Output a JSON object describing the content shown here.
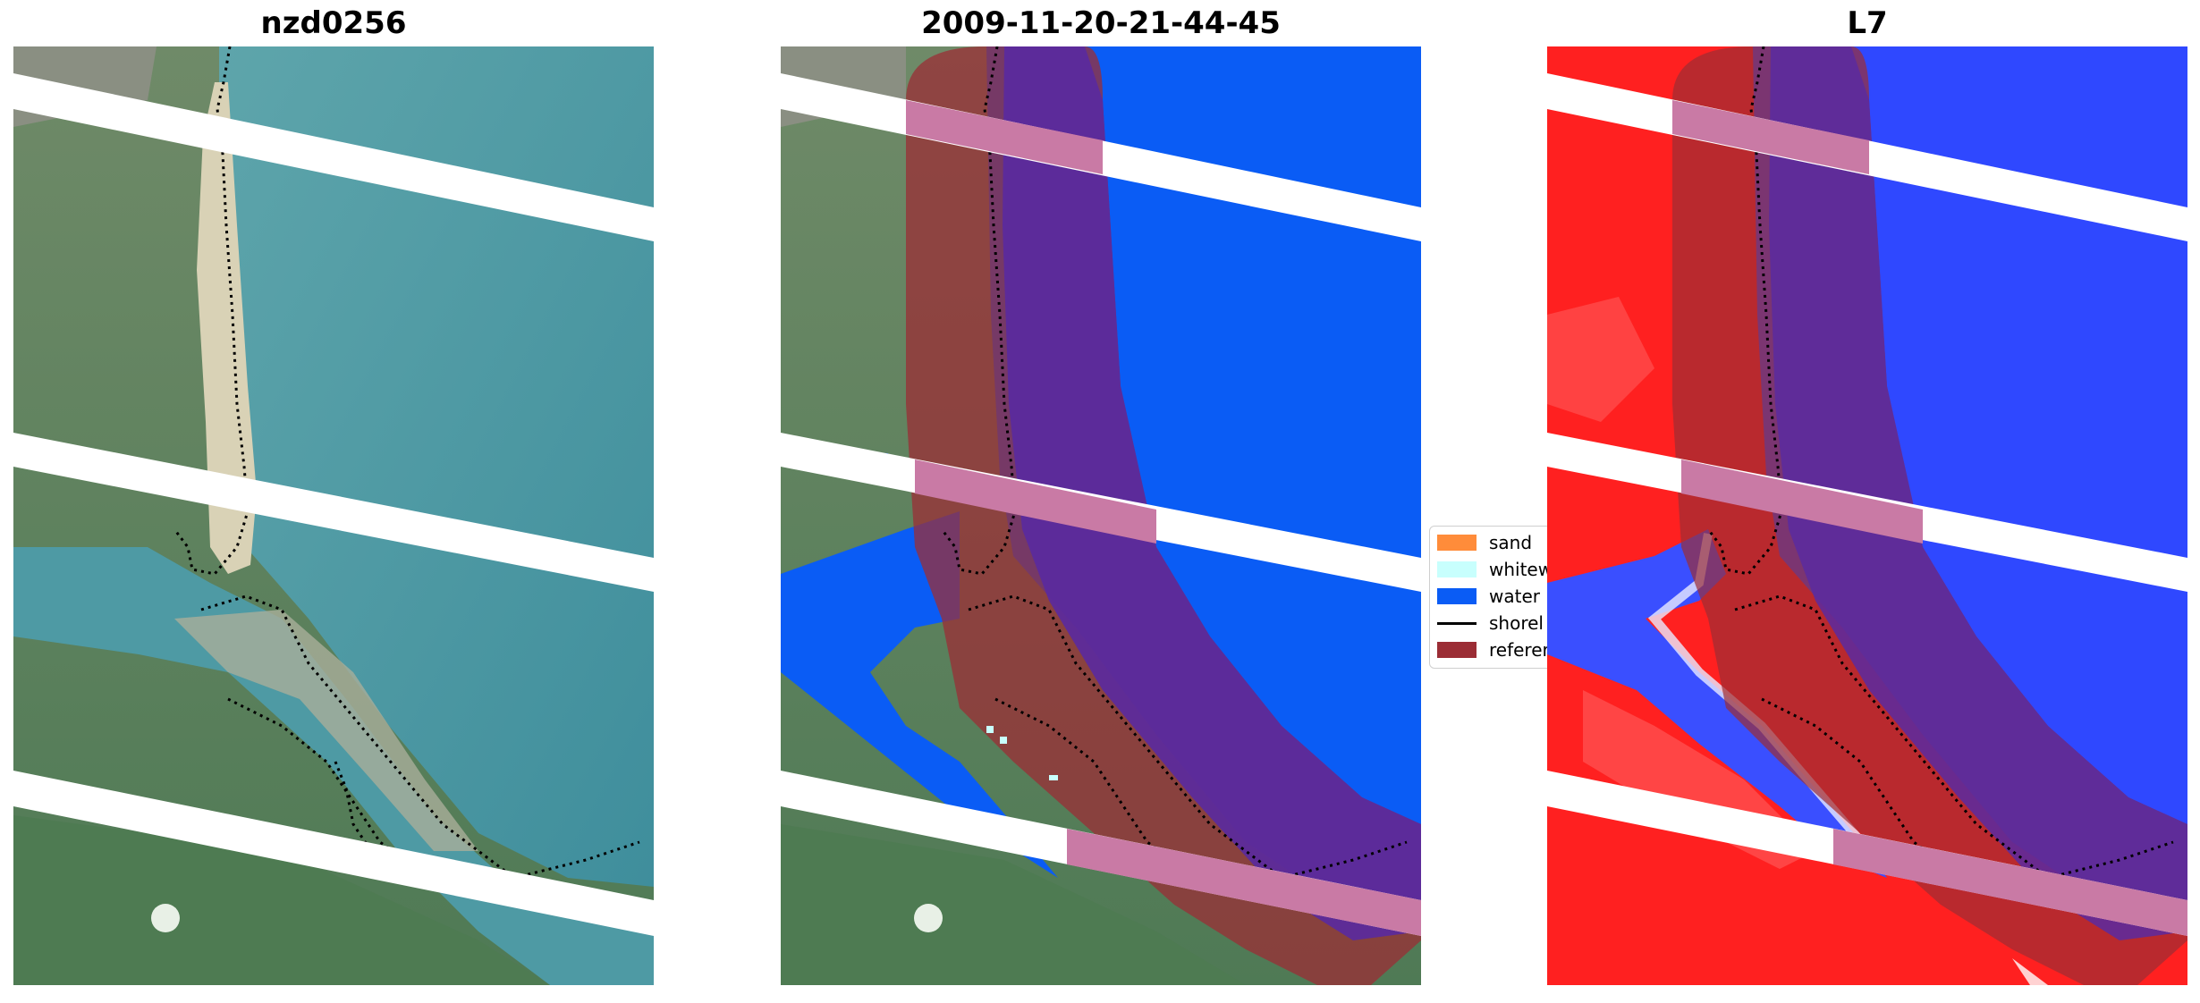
{
  "panels": [
    {
      "title": "nzd0256"
    },
    {
      "title": "2009-11-20-21-44-45"
    },
    {
      "title": "L7"
    }
  ],
  "legend": {
    "items": [
      {
        "label": "sand",
        "color": "#ff8c3a",
        "kind": "patch"
      },
      {
        "label": "whitew",
        "color": "#c8fffd",
        "kind": "patch"
      },
      {
        "label": "water",
        "color": "#0a5cf5",
        "kind": "patch"
      },
      {
        "label": "shorel",
        "color": "#000000",
        "kind": "line"
      },
      {
        "label": "referer",
        "color": "#9b2d35",
        "kind": "patch"
      }
    ]
  },
  "colors": {
    "water_class": "#0a5cf5",
    "reference_overlay": "#9b2d35",
    "index_positive": "#ff0000",
    "index_negative": "#1f3cff",
    "scanline_gap": "#ffffff"
  }
}
